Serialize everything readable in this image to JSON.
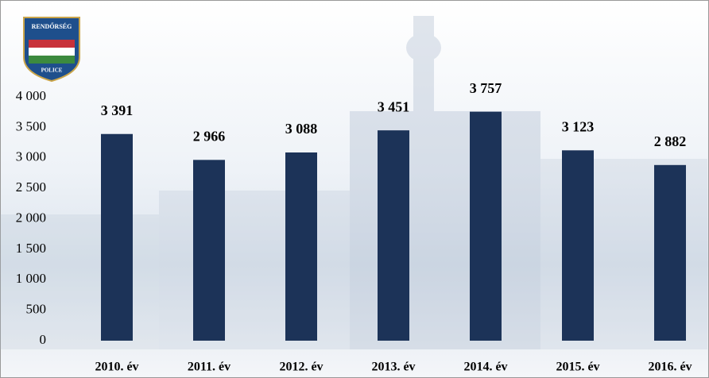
{
  "logo": {
    "top": "RENDŐRSÉG",
    "bottom": "POLICE"
  },
  "chart_data": {
    "type": "bar",
    "categories": [
      "2010. év",
      "2011. év",
      "2012. év",
      "2013. év",
      "2014. év",
      "2015. év",
      "2016. év"
    ],
    "values": [
      3391,
      2966,
      3088,
      3451,
      3757,
      3123,
      2882
    ],
    "value_labels": [
      "3 391",
      "2 966",
      "3 088",
      "3 451",
      "3 757",
      "3 123",
      "2 882"
    ],
    "color": "#1c3358",
    "ylim": [
      0,
      4000
    ],
    "yticks": [
      0,
      500,
      {
        "value": 1000,
        "label": "1 000"
      },
      {
        "value": 1500,
        "label": "1 500"
      },
      {
        "value": 2000,
        "label": "2 000"
      },
      {
        "value": 2500,
        "label": "2 500"
      },
      {
        "value": 3000,
        "label": "3 000"
      },
      {
        "value": 3500,
        "label": "3 500"
      },
      {
        "value": 4000,
        "label": "4 000"
      }
    ],
    "grid": false
  }
}
